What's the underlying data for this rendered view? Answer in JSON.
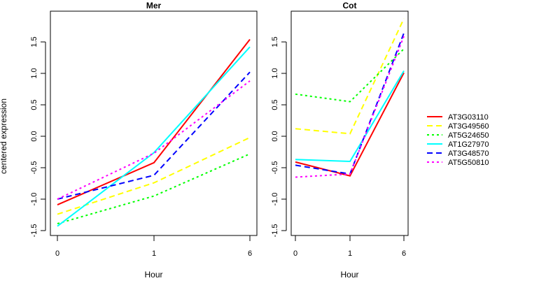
{
  "chart_data": [
    {
      "type": "line",
      "title": "Mer",
      "xlabel": "Hour",
      "ylabel": "centered expression",
      "categories": [
        "0",
        "1",
        "6"
      ],
      "y_ticks": [
        "-1.5",
        "-1.0",
        "-0.5",
        "0.0",
        "0.5",
        "1.0",
        "1.5"
      ],
      "ylim": [
        -1.6,
        1.95
      ],
      "series": [
        {
          "name": "AT3G03110",
          "values": [
            -1.09,
            -0.42,
            1.54
          ]
        },
        {
          "name": "AT3G49560",
          "values": [
            -1.24,
            -0.74,
            -0.02
          ]
        },
        {
          "name": "AT5G24650",
          "values": [
            -1.39,
            -0.95,
            -0.28
          ]
        },
        {
          "name": "AT1G27970",
          "values": [
            -1.43,
            -0.26,
            1.42
          ]
        },
        {
          "name": "AT3G48570",
          "values": [
            -1.0,
            -0.62,
            1.02
          ]
        },
        {
          "name": "AT5G50810",
          "values": [
            -1.0,
            -0.27,
            0.88
          ]
        }
      ]
    },
    {
      "type": "line",
      "title": "Cot",
      "xlabel": "Hour",
      "ylabel": "",
      "categories": [
        "0",
        "1",
        "6"
      ],
      "y_ticks": [
        "-1.5",
        "-1.0",
        "-0.5",
        "0.0",
        "0.5",
        "1.0",
        "1.5"
      ],
      "ylim": [
        -1.6,
        1.95
      ],
      "series": [
        {
          "name": "AT3G03110",
          "values": [
            -0.41,
            -0.63,
            1.01
          ]
        },
        {
          "name": "AT3G49560",
          "values": [
            0.12,
            0.04,
            1.87
          ]
        },
        {
          "name": "AT5G24650",
          "values": [
            0.67,
            0.55,
            1.39
          ]
        },
        {
          "name": "AT1G27970",
          "values": [
            -0.37,
            -0.4,
            1.04
          ]
        },
        {
          "name": "AT3G48570",
          "values": [
            -0.46,
            -0.6,
            1.64
          ]
        },
        {
          "name": "AT5G50810",
          "values": [
            -0.65,
            -0.6,
            1.59
          ]
        }
      ]
    }
  ],
  "legend": {
    "position": "right",
    "items": [
      {
        "name": "AT3G03110",
        "color": "#ff0000",
        "style": "solid"
      },
      {
        "name": "AT3G49560",
        "color": "#ffff00",
        "style": "dashed"
      },
      {
        "name": "AT5G24650",
        "color": "#00ff00",
        "style": "dotted"
      },
      {
        "name": "AT1G27970",
        "color": "#00ffff",
        "style": "solid"
      },
      {
        "name": "AT3G48570",
        "color": "#0000ff",
        "style": "dashed"
      },
      {
        "name": "AT5G50810",
        "color": "#ff00ff",
        "style": "dotted"
      }
    ]
  }
}
